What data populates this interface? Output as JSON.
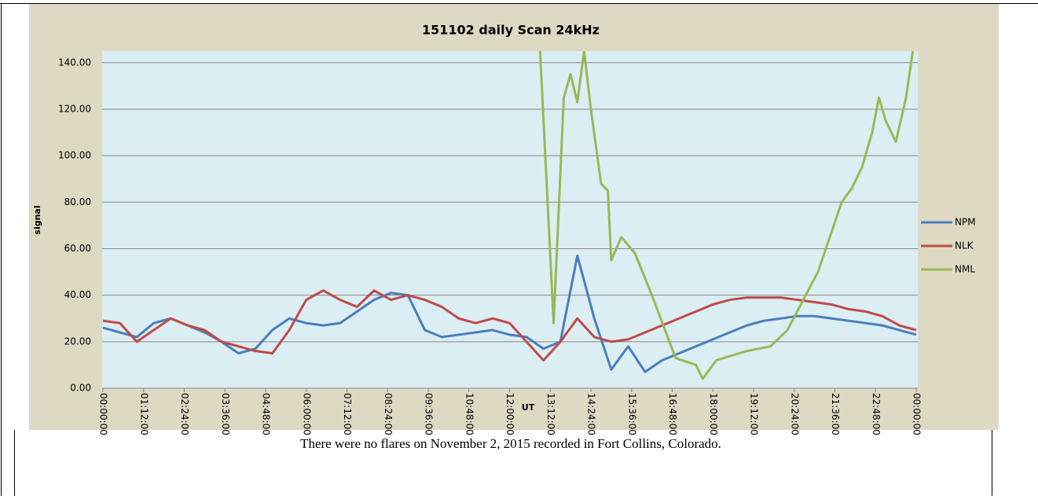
{
  "chart_data": {
    "type": "line",
    "title": "151102 daily Scan 24kHz",
    "ylabel": "signal",
    "xlabel": "UT",
    "caption": "There were no flares on November 2, 2015 recorded in Fort Collins, Colorado.",
    "xlim": [
      0,
      24
    ],
    "xticks": [
      {
        "value": 0,
        "label": "00:00:00"
      },
      {
        "value": 1.2,
        "label": "01:12:00"
      },
      {
        "value": 2.4,
        "label": "02:24:00"
      },
      {
        "value": 3.6,
        "label": "03:36:00"
      },
      {
        "value": 4.8,
        "label": "04:48:00"
      },
      {
        "value": 6,
        "label": "06:00:00"
      },
      {
        "value": 7.2,
        "label": "07:12:00"
      },
      {
        "value": 8.4,
        "label": "08:24:00"
      },
      {
        "value": 9.6,
        "label": "09:36:00"
      },
      {
        "value": 10.8,
        "label": "10:48:00"
      },
      {
        "value": 12,
        "label": "12:00:00"
      },
      {
        "value": 13.2,
        "label": "13:12:00"
      },
      {
        "value": 14.4,
        "label": "14:24:00"
      },
      {
        "value": 15.6,
        "label": "15:36:00"
      },
      {
        "value": 16.8,
        "label": "16:48:00"
      },
      {
        "value": 18,
        "label": "18:00:00"
      },
      {
        "value": 19.2,
        "label": "19:12:00"
      },
      {
        "value": 20.4,
        "label": "20:24:00"
      },
      {
        "value": 21.6,
        "label": "21:36:00"
      },
      {
        "value": 22.8,
        "label": "22:48:00"
      },
      {
        "value": 24,
        "label": "00:00:00"
      }
    ],
    "ylim": [
      0,
      145
    ],
    "yticks": [
      {
        "value": 0,
        "label": "0.00"
      },
      {
        "value": 20,
        "label": "20.00"
      },
      {
        "value": 40,
        "label": "40.00"
      },
      {
        "value": 60,
        "label": "60.00"
      },
      {
        "value": 80,
        "label": "80.00"
      },
      {
        "value": 100,
        "label": "100.00"
      },
      {
        "value": 120,
        "label": "120.00"
      },
      {
        "value": 140,
        "label": "140.00"
      }
    ],
    "grid": true,
    "legend": "right",
    "x": [
      0,
      0.5,
      1,
      1.5,
      2,
      2.5,
      3,
      3.5,
      4,
      4.5,
      5,
      5.5,
      6,
      6.5,
      7,
      7.5,
      8,
      8.5,
      9,
      9.5,
      10,
      10.5,
      11,
      11.5,
      12,
      12.5,
      13,
      13.5,
      14,
      14.5,
      15,
      15.5,
      16,
      16.5,
      17,
      17.5,
      18,
      18.5,
      19,
      19.5,
      20,
      20.5,
      21,
      21.5,
      22,
      22.5,
      23,
      23.5,
      24
    ],
    "series": [
      {
        "name": "NPM",
        "color": "#4a7ebb",
        "values": [
          26,
          24,
          22,
          28,
          30,
          27,
          24,
          20,
          15,
          17,
          25,
          30,
          28,
          27,
          28,
          33,
          38,
          41,
          40,
          25,
          22,
          23,
          24,
          25,
          23,
          22,
          17,
          20,
          57,
          30,
          8,
          18,
          7,
          12,
          15,
          18,
          21,
          24,
          27,
          29,
          30,
          31,
          31,
          30,
          29,
          28,
          27,
          25,
          23
        ]
      },
      {
        "name": "NLK",
        "color": "#be4b48",
        "values": [
          29,
          28,
          20,
          25,
          30,
          27,
          25,
          20,
          18,
          16,
          15,
          25,
          38,
          42,
          38,
          35,
          42,
          38,
          40,
          38,
          35,
          30,
          28,
          30,
          28,
          20,
          12,
          20,
          30,
          22,
          20,
          21,
          24,
          27,
          30,
          33,
          36,
          38,
          39,
          39,
          39,
          38,
          37,
          36,
          34,
          33,
          31,
          27,
          25
        ]
      },
      {
        "name": "NML",
        "color": "#98b954",
        "x": [
          12.9,
          13.3,
          13.6,
          13.8,
          14.0,
          14.2,
          14.4,
          14.7,
          14.9,
          15.0,
          15.3,
          15.7,
          16.2,
          16.9,
          17.5,
          17.7,
          18.1,
          19.0,
          19.7,
          20.2,
          21.1,
          21.8,
          22.1,
          22.4,
          22.7,
          22.9,
          23.1,
          23.4,
          23.7,
          23.9
        ],
        "values": [
          145,
          28,
          125,
          135,
          123,
          145,
          120,
          88,
          85,
          55,
          65,
          58,
          40,
          13,
          10,
          4,
          12,
          16,
          18,
          25,
          50,
          80,
          86,
          95,
          110,
          125,
          115,
          106,
          125,
          145
        ]
      }
    ]
  }
}
